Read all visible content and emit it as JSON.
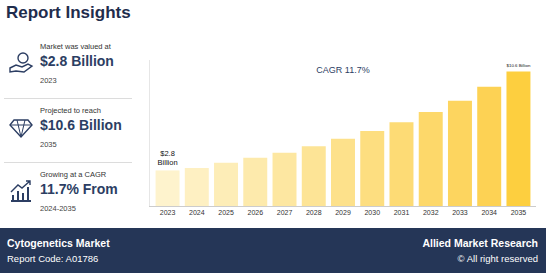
{
  "header": {
    "title": "Report Insights"
  },
  "insights": [
    {
      "label": "Market was valued at",
      "value": "$2.8 Billion",
      "year": "2023"
    },
    {
      "label": "Projected to reach",
      "value": "$10.6 Billion",
      "year": "2035"
    },
    {
      "label": "Growing at a CAGR",
      "value": "11.7% From",
      "year": "2024-2035"
    }
  ],
  "footer": {
    "market": "Cytogenetics Market",
    "code": "Report Code: A01786",
    "brand": "Allied Market Research",
    "rights": "© All right reserved"
  },
  "chart_data": {
    "type": "bar",
    "title": "CAGR 11.7%",
    "categories": [
      "2023",
      "2024",
      "2025",
      "2026",
      "2027",
      "2028",
      "2029",
      "2030",
      "2031",
      "2032",
      "2033",
      "2034",
      "2035"
    ],
    "values": [
      2.8,
      3.0,
      3.4,
      3.8,
      4.2,
      4.7,
      5.3,
      5.9,
      6.6,
      7.4,
      8.3,
      9.4,
      10.6
    ],
    "value_labels": [
      "$2.8\nBillion",
      null,
      null,
      null,
      null,
      null,
      null,
      null,
      null,
      null,
      null,
      null,
      "$10.6 Billion"
    ],
    "colors": [
      "#fef3cd",
      "#fef0c2",
      "#fdedb7",
      "#fdeaac",
      "#fde7a1",
      "#fde496",
      "#fde18b",
      "#fdde80",
      "#fddb75",
      "#fdd86a",
      "#fdd55f",
      "#fdd254",
      "#fdcf3f"
    ],
    "ylim": [
      0,
      11.5
    ],
    "grid": false,
    "tick_labels": "x"
  }
}
